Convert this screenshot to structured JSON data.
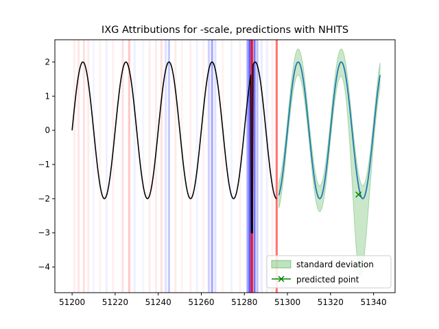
{
  "chart_data": {
    "type": "line",
    "title": "IXG Attributions for -scale, predictions with NHITS",
    "xlabel": "",
    "ylabel": "",
    "xlim": [
      51192,
      51350
    ],
    "ylim": [
      -4.75,
      2.65
    ],
    "x_ticks": [
      51200,
      51220,
      51240,
      51260,
      51280,
      51300,
      51320,
      51340
    ],
    "y_ticks": [
      -4,
      -3,
      -2,
      -1,
      0,
      1,
      2
    ],
    "grid": false,
    "legend": {
      "placement": "lower right",
      "entries": [
        {
          "label": "standard deviation",
          "kind": "band",
          "color": "#2ca02c"
        },
        {
          "label": "predicted point",
          "kind": "marker",
          "color": "#008000"
        }
      ]
    },
    "series": [
      {
        "role": "history",
        "color": "#000000",
        "x_start": 51200,
        "x_end": 51295,
        "period": 20,
        "amplitude": 2.0,
        "peak_x": 51205,
        "dropout": {
          "x": 51283.5,
          "low": -3.0
        }
      },
      {
        "role": "forecast",
        "color": "#1f77b4",
        "x_start": 51296,
        "x_end": 51343,
        "period": 20,
        "amplitude": 2.0,
        "peak_x": 51305
      }
    ],
    "std_band": {
      "color": "#2ca02c",
      "x_start": 51296,
      "x_end": 51343,
      "width": 0.28,
      "bulge": {
        "x": 51333,
        "extra": 2.1,
        "spread": 4
      }
    },
    "predicted_point": {
      "x": 51333,
      "y": -1.88,
      "color": "#008000"
    },
    "attribution_bands": [
      {
        "x": 51201,
        "w": 1,
        "color": "#ff0000",
        "alpha": 0.07
      },
      {
        "x": 51203,
        "w": 1,
        "color": "#ff0000",
        "alpha": 0.1
      },
      {
        "x": 51205.5,
        "w": 1,
        "color": "#ff0000",
        "alpha": 0.12
      },
      {
        "x": 51207.5,
        "w": 1,
        "color": "#ff0000",
        "alpha": 0.08
      },
      {
        "x": 51210,
        "w": 1,
        "color": "#0000ff",
        "alpha": 0.04
      },
      {
        "x": 51213,
        "w": 1,
        "color": "#ff0000",
        "alpha": 0.05
      },
      {
        "x": 51216,
        "w": 1,
        "color": "#0000ff",
        "alpha": 0.06
      },
      {
        "x": 51219,
        "w": 1,
        "color": "#ff0000",
        "alpha": 0.06
      },
      {
        "x": 51223.5,
        "w": 1,
        "color": "#ff0000",
        "alpha": 0.12
      },
      {
        "x": 51226.5,
        "w": 1,
        "color": "#ff0000",
        "alpha": 0.22
      },
      {
        "x": 51229,
        "w": 1,
        "color": "#0000ff",
        "alpha": 0.06
      },
      {
        "x": 51233,
        "w": 1,
        "color": "#0000ff",
        "alpha": 0.04
      },
      {
        "x": 51236,
        "w": 1,
        "color": "#ff0000",
        "alpha": 0.07
      },
      {
        "x": 51239,
        "w": 1,
        "color": "#ff0000",
        "alpha": 0.08
      },
      {
        "x": 51241.5,
        "w": 1,
        "color": "#ff0000",
        "alpha": 0.12
      },
      {
        "x": 51243.5,
        "w": 1,
        "color": "#0000ff",
        "alpha": 0.12
      },
      {
        "x": 51245,
        "w": 1,
        "color": "#0000ff",
        "alpha": 0.22
      },
      {
        "x": 51248,
        "w": 1,
        "color": "#ff0000",
        "alpha": 0.08
      },
      {
        "x": 51251,
        "w": 1,
        "color": "#ff0000",
        "alpha": 0.05
      },
      {
        "x": 51255,
        "w": 1,
        "color": "#ff0000",
        "alpha": 0.06
      },
      {
        "x": 51258,
        "w": 1,
        "color": "#0000ff",
        "alpha": 0.05
      },
      {
        "x": 51261,
        "w": 1,
        "color": "#ff0000",
        "alpha": 0.05
      },
      {
        "x": 51263.5,
        "w": 1,
        "color": "#0000ff",
        "alpha": 0.18
      },
      {
        "x": 51265,
        "w": 1,
        "color": "#0000ff",
        "alpha": 0.35
      },
      {
        "x": 51266.5,
        "w": 1,
        "color": "#0000ff",
        "alpha": 0.12
      },
      {
        "x": 51270,
        "w": 1,
        "color": "#ff0000",
        "alpha": 0.05
      },
      {
        "x": 51274,
        "w": 1,
        "color": "#0000ff",
        "alpha": 0.05
      },
      {
        "x": 51278,
        "w": 1,
        "color": "#ff0000",
        "alpha": 0.06
      },
      {
        "x": 51281.5,
        "w": 1,
        "color": "#0000ff",
        "alpha": 0.35
      },
      {
        "x": 51282.5,
        "w": 1,
        "color": "#0000ff",
        "alpha": 0.65
      },
      {
        "x": 51283.5,
        "w": 1,
        "color": "#ff0000",
        "alpha": 0.95
      },
      {
        "x": 51284.7,
        "w": 1,
        "color": "#0000ff",
        "alpha": 0.55
      },
      {
        "x": 51286,
        "w": 1,
        "color": "#0000ff",
        "alpha": 0.25
      },
      {
        "x": 51288,
        "w": 1,
        "color": "#0000ff",
        "alpha": 0.08
      },
      {
        "x": 51290.5,
        "w": 1,
        "color": "#0000ff",
        "alpha": 0.06
      },
      {
        "x": 51293,
        "w": 1,
        "color": "#ff0000",
        "alpha": 0.06
      },
      {
        "x": 51295,
        "w": 1,
        "color": "#ff0000",
        "alpha": 0.55
      }
    ]
  }
}
